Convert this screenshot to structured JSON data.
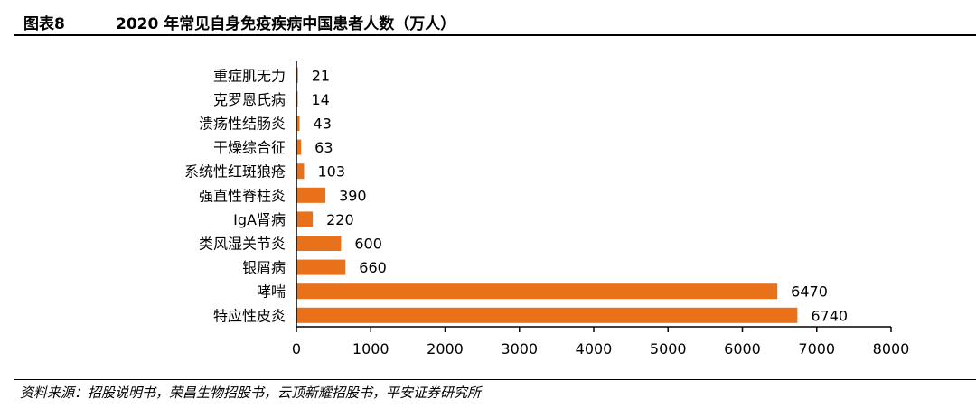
{
  "header": {
    "figure_label": "图表8",
    "title": "2020 年常见自身免疫疾病中国患者人数（万人）"
  },
  "footer": {
    "source": "资料来源：招股说明书，荣昌生物招股书，云顶新耀招股书，平安证券研究所"
  },
  "colors": {
    "bar": "#E8711A",
    "axis": "#000000"
  },
  "chart_data": {
    "type": "bar",
    "orientation": "horizontal",
    "title": "2020 年常见自身免疫疾病中国患者人数（万人）",
    "xlabel": "",
    "ylabel": "",
    "categories": [
      "重症肌无力",
      "克罗恩氏病",
      "溃疡性结肠炎",
      "干燥综合征",
      "系统性红斑狼疮",
      "强直性脊柱炎",
      "IgA肾病",
      "类风湿关节炎",
      "银屑病",
      "哮喘",
      "特应性皮炎"
    ],
    "values": [
      21,
      14,
      43,
      63,
      103,
      390,
      220,
      600,
      660,
      6470,
      6740
    ],
    "xlim": [
      0,
      8000
    ],
    "xticks": [
      0,
      1000,
      2000,
      3000,
      4000,
      5000,
      6000,
      7000,
      8000
    ],
    "grid": false,
    "legend": "none"
  }
}
